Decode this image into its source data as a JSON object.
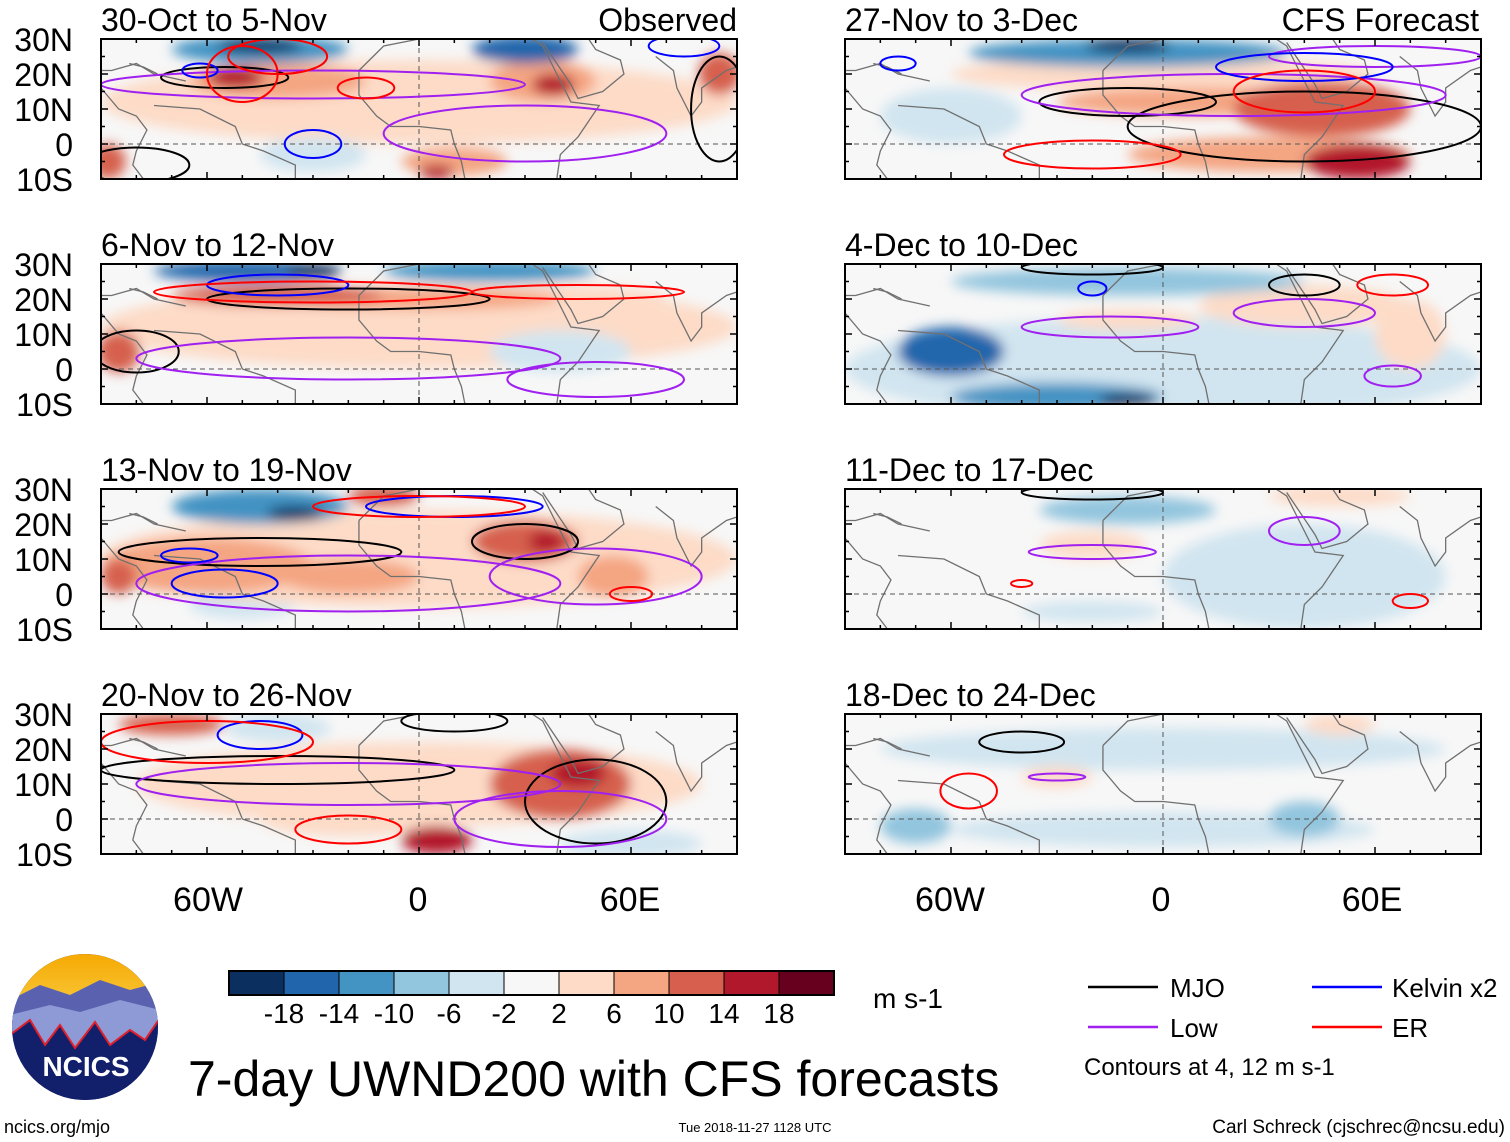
{
  "title": "7-day UWND200 with CFS forecasts",
  "footer": {
    "site": "ncics.org/mjo",
    "timestamp": "Tue 2018-11-27 1128 UTC",
    "author": "Carl Schreck (cjschrec@ncsu.edu)"
  },
  "logo": {
    "text": "NCICS"
  },
  "columns": {
    "left_label": "Observed",
    "right_label": "CFS Forecast"
  },
  "lat_labels": [
    "30N",
    "20N",
    "10N",
    "0",
    "10S"
  ],
  "lon_labels": [
    "60W",
    "0",
    "60E"
  ],
  "colorbar": {
    "units": "m s-1",
    "levels": [
      "-18",
      "-14",
      "-10",
      "-6",
      "-2",
      "2",
      "6",
      "10",
      "14",
      "18"
    ],
    "colors": [
      "#0b2f5f",
      "#2166ac",
      "#4393c3",
      "#92c5de",
      "#d1e5f0",
      "#f7f7f7",
      "#fddbc7",
      "#f4a582",
      "#d6604d",
      "#b2182b",
      "#67001f"
    ]
  },
  "legend": {
    "items": [
      {
        "label": "MJO",
        "color": "#000000"
      },
      {
        "label": "Kelvin x2",
        "color": "#0000ff"
      },
      {
        "label": "Low",
        "color": "#a020f0"
      },
      {
        "label": "ER",
        "color": "#ff0000"
      }
    ],
    "note": "Contours at 4, 12 m s-1"
  },
  "chart_data": {
    "type": "heatmap",
    "variable": "200-hPa zonal wind anomaly (m s-1)",
    "lon_range": [
      -90,
      90
    ],
    "lat_range": [
      -10,
      30
    ],
    "anomaly_center_format": "[lon, lat, lon_halfwidth, lat_halfwidth, value]",
    "contour_format": "[type, lon, lat, lon_halfwidth, lat_halfwidth]",
    "panels": [
      {
        "title": "30-Oct to 5-Nov",
        "source": "Observed",
        "anomaly_centers": [
          [
            0,
            12,
            90,
            12,
            4
          ],
          [
            -30,
            -3,
            15,
            5,
            -4
          ],
          [
            -45,
            27,
            25,
            4,
            -12
          ],
          [
            -45,
            28,
            12,
            2,
            -20
          ],
          [
            30,
            27,
            15,
            4,
            -14
          ],
          [
            -40,
            18,
            25,
            5,
            10
          ],
          [
            -52,
            19,
            8,
            3,
            16
          ],
          [
            35,
            18,
            15,
            6,
            10
          ],
          [
            38,
            17,
            6,
            3,
            18
          ],
          [
            10,
            -5,
            15,
            4,
            10
          ],
          [
            5,
            -8,
            5,
            2,
            16
          ],
          [
            -88,
            -5,
            5,
            5,
            12
          ],
          [
            85,
            20,
            6,
            6,
            12
          ]
        ],
        "contours": [
          [
            "mjo",
            -55,
            19,
            18,
            3
          ],
          [
            "mjo",
            -80,
            -6,
            15,
            5
          ],
          [
            "mjo",
            85,
            10,
            8,
            15
          ],
          [
            "low",
            -30,
            17,
            60,
            4
          ],
          [
            "low",
            30,
            3,
            40,
            8
          ],
          [
            "kelvin",
            -62,
            21,
            5,
            2
          ],
          [
            "kelvin",
            -30,
            0,
            8,
            4
          ],
          [
            "kelvin",
            75,
            28,
            10,
            3
          ],
          [
            "er",
            -50,
            20,
            10,
            8
          ],
          [
            "er",
            -15,
            16,
            8,
            3
          ],
          [
            "er",
            -40,
            25,
            14,
            5
          ]
        ]
      },
      {
        "title": "6-Nov to 12-Nov",
        "source": "Observed",
        "anomaly_centers": [
          [
            0,
            12,
            90,
            12,
            4
          ],
          [
            40,
            5,
            20,
            6,
            -4
          ],
          [
            -50,
            28,
            25,
            3,
            -14
          ],
          [
            -30,
            28,
            8,
            2,
            -20
          ],
          [
            20,
            28,
            30,
            3,
            -10
          ],
          [
            -40,
            21,
            30,
            3,
            12
          ],
          [
            0,
            20,
            40,
            3,
            8
          ],
          [
            40,
            20,
            30,
            4,
            6
          ],
          [
            -85,
            5,
            6,
            6,
            14
          ]
        ],
        "contours": [
          [
            "mjo",
            -20,
            20,
            40,
            3
          ],
          [
            "mjo",
            -80,
            5,
            12,
            6
          ],
          [
            "low",
            -20,
            3,
            60,
            6
          ],
          [
            "low",
            50,
            -3,
            25,
            5
          ],
          [
            "kelvin",
            -40,
            24,
            20,
            3
          ],
          [
            "er",
            -30,
            22,
            45,
            3
          ],
          [
            "er",
            45,
            22,
            30,
            2
          ]
        ]
      },
      {
        "title": "13-Nov to 19-Nov",
        "source": "Observed",
        "anomaly_centers": [
          [
            0,
            10,
            90,
            14,
            5
          ],
          [
            -50,
            -3,
            15,
            4,
            -4
          ],
          [
            -45,
            25,
            25,
            5,
            -12
          ],
          [
            -35,
            23,
            8,
            2,
            -20
          ],
          [
            -10,
            28,
            10,
            3,
            14
          ],
          [
            30,
            15,
            15,
            6,
            12
          ],
          [
            36,
            15,
            5,
            3,
            18
          ],
          [
            -60,
            8,
            30,
            8,
            8
          ],
          [
            -20,
            5,
            20,
            5,
            10
          ],
          [
            -85,
            5,
            5,
            5,
            14
          ],
          [
            55,
            5,
            10,
            6,
            8
          ]
        ],
        "contours": [
          [
            "mjo",
            -45,
            12,
            40,
            4
          ],
          [
            "mjo",
            30,
            15,
            15,
            5
          ],
          [
            "low",
            -20,
            3,
            60,
            8
          ],
          [
            "low",
            50,
            5,
            30,
            8
          ],
          [
            "kelvin",
            -55,
            3,
            15,
            4
          ],
          [
            "kelvin",
            -65,
            11,
            8,
            2
          ],
          [
            "kelvin",
            10,
            25,
            25,
            3
          ],
          [
            "er",
            60,
            0,
            6,
            2
          ],
          [
            "er",
            0,
            25,
            30,
            3
          ]
        ]
      },
      {
        "title": "20-Nov to 26-Nov",
        "source": "Observed",
        "anomaly_centers": [
          [
            0,
            10,
            80,
            12,
            4
          ],
          [
            -40,
            26,
            15,
            4,
            -4
          ],
          [
            60,
            -7,
            20,
            4,
            -4
          ],
          [
            -70,
            27,
            15,
            3,
            12
          ],
          [
            40,
            10,
            20,
            10,
            12
          ],
          [
            45,
            13,
            8,
            4,
            18
          ],
          [
            5,
            -6,
            10,
            4,
            16
          ],
          [
            -20,
            0,
            25,
            5,
            6
          ]
        ],
        "contours": [
          [
            "mjo",
            -40,
            14,
            50,
            4
          ],
          [
            "mjo",
            50,
            5,
            20,
            12
          ],
          [
            "mjo",
            10,
            28,
            15,
            3
          ],
          [
            "low",
            -20,
            10,
            60,
            6
          ],
          [
            "low",
            40,
            0,
            30,
            8
          ],
          [
            "kelvin",
            -45,
            24,
            12,
            4
          ],
          [
            "er",
            -20,
            -3,
            15,
            4
          ],
          [
            "er",
            -60,
            22,
            30,
            6
          ]
        ]
      },
      {
        "title": "27-Nov to 3-Dec",
        "source": "CFS Forecast",
        "anomaly_centers": [
          [
            0,
            20,
            60,
            5,
            4
          ],
          [
            -60,
            8,
            20,
            8,
            -4
          ],
          [
            -10,
            26,
            45,
            4,
            -12
          ],
          [
            -10,
            28,
            12,
            2,
            -18
          ],
          [
            10,
            12,
            40,
            4,
            10
          ],
          [
            45,
            10,
            25,
            8,
            12
          ],
          [
            55,
            -5,
            15,
            5,
            16
          ],
          [
            30,
            -3,
            40,
            5,
            8
          ]
        ],
        "contours": [
          [
            "mjo",
            -10,
            12,
            25,
            4
          ],
          [
            "mjo",
            40,
            5,
            50,
            10
          ],
          [
            "low",
            20,
            14,
            60,
            6
          ],
          [
            "low",
            60,
            25,
            30,
            3
          ],
          [
            "kelvin",
            -75,
            23,
            5,
            2
          ],
          [
            "kelvin",
            40,
            22,
            25,
            4
          ],
          [
            "er",
            40,
            15,
            20,
            6
          ],
          [
            "er",
            -20,
            -3,
            25,
            4
          ]
        ]
      },
      {
        "title": "4-Dec to 10-Dec",
        "source": "CFS Forecast",
        "anomaly_centers": [
          [
            0,
            0,
            90,
            15,
            -3
          ],
          [
            -10,
            25,
            50,
            4,
            -8
          ],
          [
            -60,
            5,
            15,
            7,
            -14
          ],
          [
            -30,
            -8,
            30,
            4,
            -12
          ],
          [
            -10,
            -9,
            8,
            2,
            -18
          ],
          [
            -10,
            14,
            20,
            3,
            6
          ],
          [
            40,
            18,
            30,
            6,
            4
          ],
          [
            70,
            10,
            10,
            10,
            4
          ]
        ],
        "contours": [
          [
            "mjo",
            -20,
            29,
            20,
            2
          ],
          [
            "mjo",
            40,
            24,
            10,
            3
          ],
          [
            "low",
            -15,
            12,
            25,
            3
          ],
          [
            "low",
            40,
            16,
            20,
            4
          ],
          [
            "low",
            65,
            -2,
            8,
            3
          ],
          [
            "kelvin",
            -20,
            23,
            4,
            2
          ],
          [
            "er",
            65,
            24,
            10,
            3
          ]
        ]
      },
      {
        "title": "11-Dec to 17-Dec",
        "source": "CFS Forecast",
        "anomaly_centers": [
          [
            40,
            5,
            40,
            15,
            -3
          ],
          [
            -20,
            -5,
            20,
            3,
            -4
          ],
          [
            -10,
            24,
            25,
            4,
            -8
          ],
          [
            -20,
            14,
            15,
            4,
            3
          ],
          [
            50,
            28,
            20,
            3,
            3
          ]
        ],
        "contours": [
          [
            "mjo",
            -20,
            29,
            20,
            2
          ],
          [
            "low",
            -20,
            12,
            18,
            2
          ],
          [
            "low",
            40,
            18,
            10,
            4
          ],
          [
            "er",
            -40,
            3,
            3,
            1
          ],
          [
            "er",
            70,
            -2,
            5,
            2
          ]
        ]
      },
      {
        "title": "18-Dec to 24-Dec",
        "source": "CFS Forecast",
        "anomaly_centers": [
          [
            0,
            20,
            80,
            6,
            -3
          ],
          [
            0,
            -3,
            60,
            5,
            -4
          ],
          [
            40,
            0,
            10,
            5,
            -8
          ],
          [
            -70,
            -2,
            10,
            5,
            -6
          ],
          [
            -30,
            12,
            10,
            3,
            3
          ],
          [
            50,
            27,
            10,
            3,
            3
          ]
        ],
        "contours": [
          [
            "mjo",
            -40,
            22,
            12,
            3
          ],
          [
            "low",
            -30,
            12,
            8,
            1
          ],
          [
            "er",
            -55,
            8,
            8,
            5
          ]
        ]
      }
    ]
  }
}
